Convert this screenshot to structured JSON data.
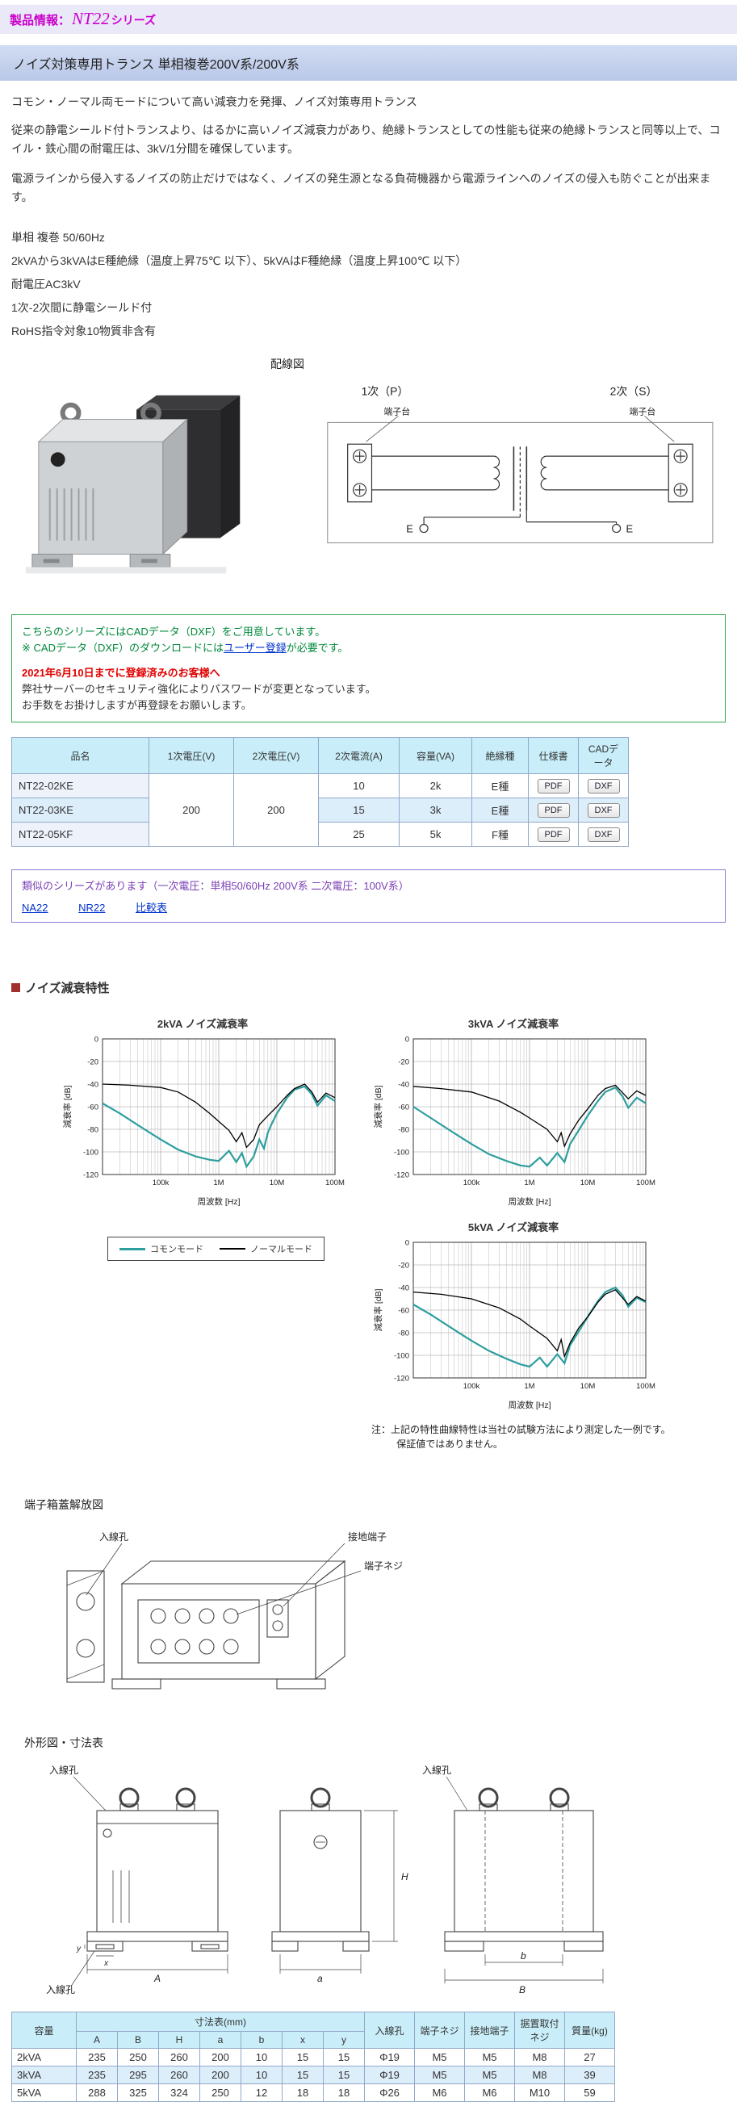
{
  "page": {
    "header": {
      "prefix": "製品情報：",
      "series": "NT22",
      "suffix": "シリーズ"
    },
    "title": "ノイズ対策専用トランス 単相複巻200V系/200V系",
    "subtitle": "コモン・ノーマル両モードについて高い減衰力を発揮、ノイズ対策専用トランス",
    "description": [
      "従来の静電シールド付トランスより、はるかに高いノイズ減衰力があり、絶縁トランスとしての性能も従来の絶縁トランスと同等以上で、コイル・鉄心間の耐電圧は、3kV/1分間を確保しています。",
      "電源ラインから侵入するノイズの防止だけではなく、ノイズの発生源となる負荷機器から電源ラインへのノイズの侵入も防ぐことが出来ます。"
    ],
    "specs": [
      "単相 複巻 50/60Hz",
      "2kVAから3kVAはE種絶縁（温度上昇75℃ 以下）、5kVAはF種絶縁（温度上昇100℃ 以下）",
      "耐電圧AC3kV",
      "1次-2次間に静電シールド付",
      "RoHS指令対象10物質非含有"
    ]
  },
  "wiring": {
    "heading": "配線図",
    "primary_label": "1次（P）",
    "secondary_label": "2次（S）",
    "terminal_left": "端子台",
    "terminal_right": "端子台",
    "earth_left": "E",
    "earth_right": "E"
  },
  "cad_notice": {
    "line1": "こちらのシリーズにはCADデータ（DXF）をご用意しています。",
    "line2_pre": "※ CADデータ（DXF）のダウンロードには",
    "line2_link": "ユーザー登録",
    "line2_post": "が必要です。",
    "alert": "2021年6月10日までに登録済みのお客様へ",
    "line3": "弊社サーバーのセキュリティ強化によりパスワードが変更となっています。",
    "line4": "お手数をお掛けしますが再登録をお願いします。"
  },
  "product_table": {
    "headers": [
      "品名",
      "1次電圧(V)",
      "2次電圧(V)",
      "2次電流(A)",
      "容量(VA)",
      "絶縁種",
      "仕様書",
      "CADデータ"
    ],
    "primary_voltage": "200",
    "secondary_voltage": "200",
    "rows": [
      {
        "name": "NT22-02KE",
        "current": "10",
        "capacity": "2k",
        "insulation": "E種",
        "spec_label": "PDF",
        "cad_label": "DXF"
      },
      {
        "name": "NT22-03KE",
        "current": "15",
        "capacity": "3k",
        "insulation": "E種",
        "spec_label": "PDF",
        "cad_label": "DXF"
      },
      {
        "name": "NT22-05KF",
        "current": "25",
        "capacity": "5k",
        "insulation": "F種",
        "spec_label": "PDF",
        "cad_label": "DXF"
      }
    ]
  },
  "similar": {
    "text": "類似のシリーズがあります（一次電圧：単相50/60Hz 200V系 二次電圧：100V系）",
    "links": [
      "NA22",
      "NR22",
      "比較表"
    ]
  },
  "attenuation": {
    "heading": "ノイズ減衰特性",
    "legend": [
      {
        "label": "コモンモード",
        "color": "#2e9e9e"
      },
      {
        "label": "ノーマルモード",
        "color": "#000000"
      }
    ],
    "note1": "注：上記の特性曲線特性は当社の試験方法により測定した一例です。",
    "note2": "保証値ではありません。"
  },
  "chart_data": [
    {
      "type": "line",
      "title": "2kVA ノイズ減衰率",
      "xlabel": "周波数 [Hz]",
      "ylabel": "減衰率 [dB]",
      "x_scale": "log",
      "x_range": [
        10000,
        100000000
      ],
      "x_ticks": [
        "100k",
        "1M",
        "10M",
        "100M"
      ],
      "x_tick_values": [
        100000,
        1000000,
        10000000,
        100000000
      ],
      "y_range": [
        -120,
        0
      ],
      "y_ticks": [
        0,
        -20,
        -40,
        -60,
        -80,
        -100,
        -120
      ],
      "grid": true,
      "series": [
        {
          "name": "コモンモード",
          "color": "#2e9e9e",
          "points": [
            [
              10000,
              -57
            ],
            [
              20000,
              -66
            ],
            [
              40000,
              -76
            ],
            [
              70000,
              -84
            ],
            [
              100000,
              -89
            ],
            [
              200000,
              -98
            ],
            [
              400000,
              -104
            ],
            [
              700000,
              -107
            ],
            [
              1000000,
              -108
            ],
            [
              1500000,
              -99
            ],
            [
              2000000,
              -109
            ],
            [
              2500000,
              -101
            ],
            [
              3000000,
              -113
            ],
            [
              4000000,
              -104
            ],
            [
              5000000,
              -89
            ],
            [
              6000000,
              -97
            ],
            [
              7000000,
              -83
            ],
            [
              8000000,
              -76
            ],
            [
              10000000,
              -66
            ],
            [
              15000000,
              -52
            ],
            [
              20000000,
              -45
            ],
            [
              30000000,
              -42
            ],
            [
              40000000,
              -49
            ],
            [
              50000000,
              -59
            ],
            [
              70000000,
              -50
            ],
            [
              100000000,
              -55
            ]
          ]
        },
        {
          "name": "ノーマルモード",
          "color": "#000000",
          "points": [
            [
              10000,
              -40
            ],
            [
              30000,
              -41
            ],
            [
              100000,
              -43
            ],
            [
              200000,
              -47
            ],
            [
              400000,
              -56
            ],
            [
              700000,
              -66
            ],
            [
              1000000,
              -73
            ],
            [
              1500000,
              -81
            ],
            [
              2000000,
              -91
            ],
            [
              2500000,
              -83
            ],
            [
              3000000,
              -96
            ],
            [
              4000000,
              -89
            ],
            [
              5000000,
              -76
            ],
            [
              7000000,
              -68
            ],
            [
              10000000,
              -60
            ],
            [
              15000000,
              -50
            ],
            [
              20000000,
              -44
            ],
            [
              30000000,
              -40
            ],
            [
              40000000,
              -47
            ],
            [
              50000000,
              -56
            ],
            [
              70000000,
              -48
            ],
            [
              100000000,
              -52
            ]
          ]
        }
      ]
    },
    {
      "type": "line",
      "title": "3kVA ノイズ減衰率",
      "xlabel": "周波数 [Hz]",
      "ylabel": "減衰率 [dB]",
      "x_scale": "log",
      "x_range": [
        10000,
        100000000
      ],
      "x_ticks": [
        "100k",
        "1M",
        "10M",
        "100M"
      ],
      "x_tick_values": [
        100000,
        1000000,
        10000000,
        100000000
      ],
      "y_range": [
        -120,
        0
      ],
      "y_ticks": [
        0,
        -20,
        -40,
        -60,
        -80,
        -100,
        -120
      ],
      "grid": true,
      "series": [
        {
          "name": "コモンモード",
          "color": "#2e9e9e",
          "points": [
            [
              10000,
              -60
            ],
            [
              20000,
              -70
            ],
            [
              40000,
              -80
            ],
            [
              70000,
              -88
            ],
            [
              100000,
              -93
            ],
            [
              200000,
              -102
            ],
            [
              400000,
              -108
            ],
            [
              700000,
              -112
            ],
            [
              1000000,
              -113
            ],
            [
              1500000,
              -105
            ],
            [
              2000000,
              -112
            ],
            [
              3000000,
              -101
            ],
            [
              4000000,
              -109
            ],
            [
              5000000,
              -93
            ],
            [
              7000000,
              -81
            ],
            [
              10000000,
              -68
            ],
            [
              15000000,
              -55
            ],
            [
              20000000,
              -47
            ],
            [
              30000000,
              -43
            ],
            [
              40000000,
              -51
            ],
            [
              50000000,
              -61
            ],
            [
              70000000,
              -52
            ],
            [
              100000000,
              -57
            ]
          ]
        },
        {
          "name": "ノーマルモード",
          "color": "#000000",
          "points": [
            [
              10000,
              -42
            ],
            [
              30000,
              -44
            ],
            [
              100000,
              -47
            ],
            [
              300000,
              -55
            ],
            [
              700000,
              -65
            ],
            [
              1000000,
              -70
            ],
            [
              2000000,
              -80
            ],
            [
              3000000,
              -91
            ],
            [
              3500000,
              -83
            ],
            [
              4000000,
              -95
            ],
            [
              5000000,
              -84
            ],
            [
              7000000,
              -72
            ],
            [
              10000000,
              -62
            ],
            [
              15000000,
              -50
            ],
            [
              20000000,
              -44
            ],
            [
              30000000,
              -41
            ],
            [
              50000000,
              -53
            ],
            [
              70000000,
              -46
            ],
            [
              100000000,
              -50
            ]
          ]
        }
      ]
    },
    {
      "type": "line",
      "title": "5kVA ノイズ減衰率",
      "xlabel": "周波数 [Hz]",
      "ylabel": "減衰率 [dB]",
      "x_scale": "log",
      "x_range": [
        10000,
        100000000
      ],
      "x_ticks": [
        "100k",
        "1M",
        "10M",
        "100M"
      ],
      "x_tick_values": [
        100000,
        1000000,
        10000000,
        100000000
      ],
      "y_range": [
        -120,
        0
      ],
      "y_ticks": [
        0,
        -20,
        -40,
        -60,
        -80,
        -100,
        -120
      ],
      "grid": true,
      "series": [
        {
          "name": "コモンモード",
          "color": "#2e9e9e",
          "points": [
            [
              10000,
              -55
            ],
            [
              20000,
              -64
            ],
            [
              40000,
              -74
            ],
            [
              70000,
              -82
            ],
            [
              100000,
              -87
            ],
            [
              200000,
              -96
            ],
            [
              400000,
              -103
            ],
            [
              700000,
              -108
            ],
            [
              1000000,
              -110
            ],
            [
              1500000,
              -102
            ],
            [
              2000000,
              -110
            ],
            [
              3000000,
              -99
            ],
            [
              4000000,
              -107
            ],
            [
              5000000,
              -91
            ],
            [
              7000000,
              -79
            ],
            [
              10000000,
              -66
            ],
            [
              15000000,
              -52
            ],
            [
              20000000,
              -44
            ],
            [
              30000000,
              -40
            ],
            [
              40000000,
              -47
            ],
            [
              50000000,
              -57
            ],
            [
              70000000,
              -49
            ],
            [
              100000000,
              -53
            ]
          ]
        },
        {
          "name": "ノーマルモード",
          "color": "#000000",
          "points": [
            [
              10000,
              -44
            ],
            [
              30000,
              -46
            ],
            [
              100000,
              -50
            ],
            [
              300000,
              -58
            ],
            [
              700000,
              -68
            ],
            [
              1000000,
              -74
            ],
            [
              2000000,
              -85
            ],
            [
              3000000,
              -96
            ],
            [
              3500000,
              -86
            ],
            [
              4000000,
              -101
            ],
            [
              5000000,
              -89
            ],
            [
              7000000,
              -76
            ],
            [
              10000000,
              -66
            ],
            [
              15000000,
              -53
            ],
            [
              20000000,
              -46
            ],
            [
              30000000,
              -42
            ],
            [
              50000000,
              -55
            ],
            [
              70000000,
              -48
            ],
            [
              100000000,
              -52
            ]
          ]
        }
      ]
    }
  ],
  "terminal_box": {
    "heading": "端子箱蓋解放図",
    "labels": {
      "inlet": "入線孔",
      "ground": "接地端子",
      "screw": "端子ネジ"
    }
  },
  "outline": {
    "heading": "外形図・寸法表",
    "inlet_label": "入線孔",
    "dim_letters": {
      "A": "A",
      "B": "B",
      "H": "H",
      "a": "a",
      "b": "b",
      "x": "x",
      "y": "y"
    }
  },
  "dimension_table": {
    "capacity_header": "容量",
    "dims_header": "寸法表(mm)",
    "dim_cols": [
      "A",
      "B",
      "H",
      "a",
      "b",
      "x",
      "y"
    ],
    "other_headers": [
      "入線孔",
      "端子ネジ",
      "接地端子",
      "据置取付ネジ",
      "質量(kg)"
    ],
    "rows": [
      {
        "capacity": "2kVA",
        "dims": [
          "235",
          "250",
          "260",
          "200",
          "10",
          "15",
          "15"
        ],
        "inlet": "Φ19",
        "terminal_screw": "M5",
        "ground": "M5",
        "mount_screw": "M8",
        "mass": "27"
      },
      {
        "capacity": "3kVA",
        "dims": [
          "235",
          "295",
          "260",
          "200",
          "10",
          "15",
          "15"
        ],
        "inlet": "Φ19",
        "terminal_screw": "M5",
        "ground": "M5",
        "mount_screw": "M8",
        "mass": "39"
      },
      {
        "capacity": "5kVA",
        "dims": [
          "288",
          "325",
          "324",
          "250",
          "12",
          "18",
          "18"
        ],
        "inlet": "Φ26",
        "terminal_screw": "M6",
        "ground": "M6",
        "mount_screw": "M10",
        "mass": "59"
      }
    ]
  }
}
